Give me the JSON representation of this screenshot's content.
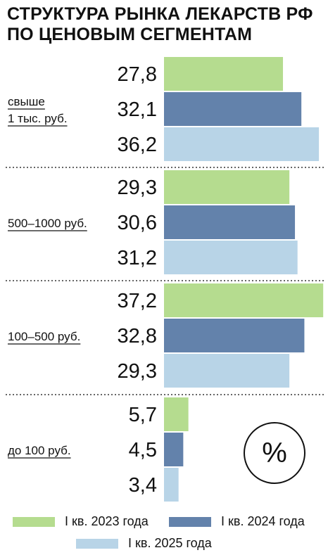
{
  "chart_data": {
    "type": "bar",
    "orientation": "horizontal",
    "title": "СТРУКТУРА РЫНКА ЛЕКАРСТВ РФ\nПО ЦЕНОВЫМ СЕГМЕНТАМ",
    "categories": [
      {
        "label": [
          "свыше",
          "1 тыс. руб."
        ]
      },
      {
        "label": [
          "500–1000 руб."
        ]
      },
      {
        "label": [
          "100–500 руб."
        ]
      },
      {
        "label": [
          "до 100 руб."
        ]
      }
    ],
    "series": [
      {
        "name": "I кв. 2023 года",
        "color": "#b5dc8f",
        "values": [
          27.8,
          29.3,
          37.2,
          5.7
        ],
        "labels": [
          "27,8",
          "29,3",
          "37,2",
          "5,7"
        ]
      },
      {
        "name": "I кв. 2024 года",
        "color": "#6382ab",
        "values": [
          32.1,
          30.6,
          32.8,
          4.5
        ],
        "labels": [
          "32,1",
          "30,6",
          "32,8",
          "4,5"
        ]
      },
      {
        "name": "I кв. 2025 года",
        "color": "#b8d4e7",
        "values": [
          36.2,
          31.2,
          29.3,
          3.4
        ],
        "labels": [
          "36,2",
          "31,2",
          "29,3",
          "3,4"
        ]
      }
    ],
    "unit_symbol": "%",
    "xlim": [
      0,
      37.2
    ],
    "grid": false,
    "legend_position": "bottom"
  }
}
